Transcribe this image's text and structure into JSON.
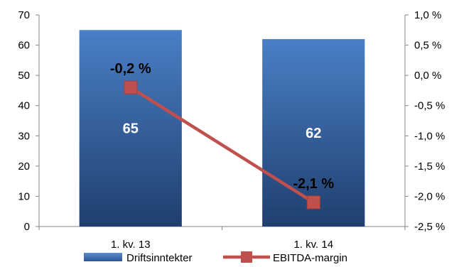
{
  "chart_data": {
    "type": "bar",
    "categories": [
      "1. kv. 13",
      "1. kv. 14"
    ],
    "series": [
      {
        "name": "Driftsinntekter",
        "type": "bar",
        "axis": "left",
        "values": [
          65,
          62
        ],
        "labels": [
          "65",
          "62"
        ],
        "color": "#3e6db0"
      },
      {
        "name": "EBITDA-margin",
        "type": "line",
        "axis": "right",
        "values": [
          -0.2,
          -2.1
        ],
        "labels": [
          "-0,2 %",
          "-2,1 %"
        ],
        "color": "#c0504d"
      }
    ],
    "y_left": {
      "ylim": [
        0,
        70
      ],
      "ticks": [
        0,
        10,
        20,
        30,
        40,
        50,
        60,
        70
      ],
      "tick_labels": [
        "0",
        "10",
        "20",
        "30",
        "40",
        "50",
        "60",
        "70"
      ]
    },
    "y_right": {
      "ylim": [
        -2.5,
        1.0
      ],
      "ticks": [
        -2.5,
        -2.0,
        -1.5,
        -1.0,
        -0.5,
        0.0,
        0.5,
        1.0
      ],
      "tick_labels": [
        "-2,5 %",
        "-2,0 %",
        "-1,5 %",
        "-1,0 %",
        "-0,5 %",
        "0,0 %",
        "0,5 %",
        "1,0 %"
      ]
    },
    "grid": false,
    "legend": "bottom"
  }
}
